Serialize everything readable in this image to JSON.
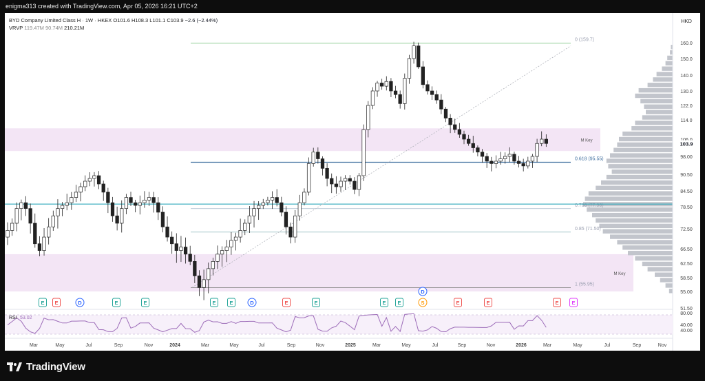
{
  "header": {
    "credit": "enigma313 created with TradingView.com, Apr 05, 2026 16:21 UTC+2"
  },
  "legend": {
    "symbol": "BYD Company Limited Class H · 1W · HKEX",
    "ohlc": {
      "o": "O101.6",
      "h": "H108.3",
      "l": "L101.1",
      "c": "C103.9",
      "chg": "−2.6 (−2.44%)"
    },
    "vrvp_label": "VRVP",
    "vrvp_values": [
      "119.47M",
      "90.74M",
      "210.21M"
    ]
  },
  "footer": {
    "brand": "TradingView"
  },
  "chart_data": {
    "type": "candlestick",
    "currency": "HKD",
    "last_price": 103.9,
    "y_ticks": [
      40.0,
      51.5,
      55.0,
      58.5,
      62.5,
      66.5,
      72.5,
      78.5,
      84.5,
      90.5,
      98.0,
      106.0,
      114.0,
      122.0,
      130.0,
      140.0,
      150.0,
      160.0
    ],
    "y_tick_labels": [
      "40.00",
      "51.50",
      "55.00",
      "58.50",
      "62.50",
      "66.50",
      "72.50",
      "78.50",
      "84.50",
      "90.50",
      "98.00",
      "106.0",
      "114.0",
      "122.0",
      "130.0",
      "140.0",
      "150.0",
      "160.0"
    ],
    "x_labels": [
      "Mar",
      "May",
      "Jul",
      "Sep",
      "Nov",
      "2024",
      "Mar",
      "May",
      "Jul",
      "Sep",
      "Nov",
      "2025",
      "Mar",
      "May",
      "Jul",
      "Sep",
      "Nov",
      "2026",
      "Mar",
      "May",
      "Jul",
      "Sep",
      "Nov"
    ],
    "x_bold": [
      "2024",
      "2025",
      "2026"
    ],
    "close_series": [
      72,
      74,
      78,
      80,
      78,
      74,
      68,
      66,
      70,
      73,
      76,
      78,
      79,
      80,
      82,
      84,
      86,
      88,
      89,
      90,
      87,
      84,
      80,
      76,
      74,
      78,
      82,
      80,
      79,
      80,
      81,
      82,
      80,
      77,
      73,
      70,
      68,
      66,
      67,
      65,
      63,
      59,
      56,
      58,
      61,
      63,
      65,
      66,
      67,
      69,
      70,
      72,
      74,
      76,
      78,
      79,
      80,
      81,
      82,
      80,
      77,
      73,
      70,
      76,
      80,
      84,
      95,
      100,
      97,
      93,
      89,
      87,
      86,
      88,
      89,
      88,
      85,
      90,
      110,
      122,
      130,
      135,
      133,
      136,
      130,
      128,
      123,
      138,
      150,
      158,
      145,
      134,
      130,
      128,
      125,
      120,
      115,
      112,
      110,
      108,
      106,
      104,
      102,
      100,
      98,
      96,
      95,
      96,
      97,
      98,
      99,
      96,
      95,
      94,
      96,
      98,
      104,
      106,
      104
    ],
    "fib_levels": [
      {
        "label": "0 (159.7)",
        "price": 159.7
      },
      {
        "label": "0.618 (95.55)",
        "price": 95.55
      },
      {
        "label": "0.786 (77.98)",
        "price": 77.98
      },
      {
        "label": "0.85 (71.50)",
        "price": 71.5
      },
      {
        "label": "1 (55.95)",
        "price": 55.95
      }
    ],
    "horizontal_lines": [
      95.55,
      79.5
    ],
    "zones": [
      {
        "label": "M Key",
        "from": 100.5,
        "to": 110.5
      },
      {
        "label": "M Key",
        "from": 55,
        "to": 65
      }
    ],
    "events": [
      {
        "type": "E",
        "color": "#26a69a"
      },
      {
        "type": "E",
        "color": "#ef5350"
      },
      {
        "type": "D",
        "color": "#2962ff"
      },
      {
        "type": "E",
        "color": "#26a69a"
      },
      {
        "type": "E",
        "color": "#26a69a"
      },
      {
        "type": "E",
        "color": "#26a69a"
      },
      {
        "type": "E",
        "color": "#26a69a"
      },
      {
        "type": "D",
        "color": "#2962ff"
      },
      {
        "type": "E",
        "color": "#ef5350"
      },
      {
        "type": "E",
        "color": "#26a69a"
      },
      {
        "type": "E",
        "color": "#26a69a"
      },
      {
        "type": "E",
        "color": "#26a69a"
      },
      {
        "type": "D",
        "color": "#2962ff"
      },
      {
        "type": "S",
        "color": "#ff9800"
      },
      {
        "type": "E",
        "color": "#ef5350"
      },
      {
        "type": "E",
        "color": "#ef5350"
      },
      {
        "type": "E",
        "color": "#ef5350"
      },
      {
        "type": "E",
        "color": "#e040fb"
      }
    ],
    "rsi": {
      "label": "RSI",
      "value": "53.02",
      "ticks": [
        "80.00",
        "40.00"
      ]
    },
    "colors": {
      "zone": "#f3e5f5",
      "fib_top": "#81c784",
      "fib_618": "#3f6f9f",
      "teal": "#26a6b8",
      "rsi": "#9c6bb8",
      "event_green": "#26a69a",
      "event_red": "#ef5350",
      "event_blue": "#2962ff"
    }
  }
}
